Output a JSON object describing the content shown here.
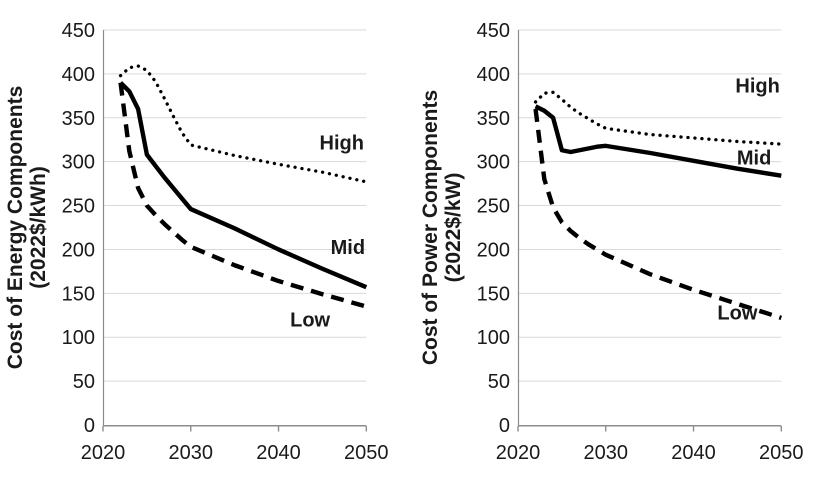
{
  "colors": {
    "line": "#000000",
    "grid": "#d9d9d9",
    "axis": "#8c8c8c",
    "text": "#1a1a1a",
    "background": "#ffffff"
  },
  "chart_data": [
    {
      "id": "energy",
      "type": "line",
      "title": "",
      "xlabel": "",
      "ylabel": "Cost of Energy Components (2022$/kWh)",
      "ylabel_lines": [
        "Cost of Energy Components",
        "(2022$/kWh)"
      ],
      "xlim": [
        2020,
        2050
      ],
      "ylim": [
        0,
        450
      ],
      "x_ticks": [
        2020,
        2030,
        2040,
        2050
      ],
      "y_ticks": [
        0,
        50,
        100,
        150,
        200,
        250,
        300,
        350,
        400,
        450
      ],
      "grid": true,
      "legend": "inline-labels",
      "x": [
        2022,
        2023,
        2024,
        2025,
        2026,
        2027,
        2028,
        2029,
        2030,
        2035,
        2040,
        2045,
        2050
      ],
      "series": [
        {
          "name": "High",
          "line_style": "dotted",
          "color": "#000000",
          "values": [
            398,
            407,
            409,
            404,
            391,
            372,
            352,
            333,
            319,
            307,
            297,
            288,
            277
          ],
          "label": {
            "text": "High",
            "x": 2047.2,
            "y": 322
          }
        },
        {
          "name": "Mid",
          "line_style": "solid",
          "color": "#000000",
          "values": [
            390,
            380,
            360,
            308,
            295,
            282,
            270,
            258,
            246,
            224,
            200,
            178,
            157
          ],
          "label": {
            "text": "Mid",
            "x": 2047.9,
            "y": 203
          }
        },
        {
          "name": "Low",
          "line_style": "dashed",
          "color": "#000000",
          "values": [
            390,
            312,
            270,
            250,
            239,
            229,
            220,
            211,
            203,
            182,
            164,
            149,
            135
          ],
          "label": {
            "text": "Low",
            "x": 2043.6,
            "y": 120
          }
        }
      ]
    },
    {
      "id": "power",
      "type": "line",
      "title": "",
      "xlabel": "",
      "ylabel": "Cost of Power Components (2022$/kW)",
      "ylabel_lines": [
        "Cost of Power Components",
        "(2022$/kW)"
      ],
      "xlim": [
        2020,
        2050
      ],
      "ylim": [
        0,
        450
      ],
      "x_ticks": [
        2020,
        2030,
        2040,
        2050
      ],
      "y_ticks": [
        0,
        50,
        100,
        150,
        200,
        250,
        300,
        350,
        400,
        450
      ],
      "grid": true,
      "legend": "inline-labels",
      "x": [
        2022,
        2023,
        2024,
        2025,
        2026,
        2027,
        2028,
        2029,
        2030,
        2035,
        2040,
        2045,
        2050
      ],
      "series": [
        {
          "name": "High",
          "line_style": "dotted",
          "color": "#000000",
          "values": [
            368,
            378,
            379,
            371,
            362,
            355,
            349,
            343,
            338,
            331,
            327,
            323,
            320
          ],
          "label": {
            "text": "High",
            "x": 2047.3,
            "y": 387
          }
        },
        {
          "name": "Mid",
          "line_style": "solid",
          "color": "#000000",
          "values": [
            363,
            358,
            350,
            313,
            311,
            313,
            315,
            317,
            318,
            310,
            301,
            292,
            284
          ],
          "label": {
            "text": "Mid",
            "x": 2046.9,
            "y": 305
          }
        },
        {
          "name": "Low",
          "line_style": "dashed",
          "color": "#000000",
          "values": [
            360,
            280,
            248,
            231,
            221,
            213,
            206,
            200,
            194,
            172,
            154,
            138,
            122
          ],
          "label": {
            "text": "Low",
            "x": 2045.0,
            "y": 128
          }
        }
      ]
    }
  ]
}
